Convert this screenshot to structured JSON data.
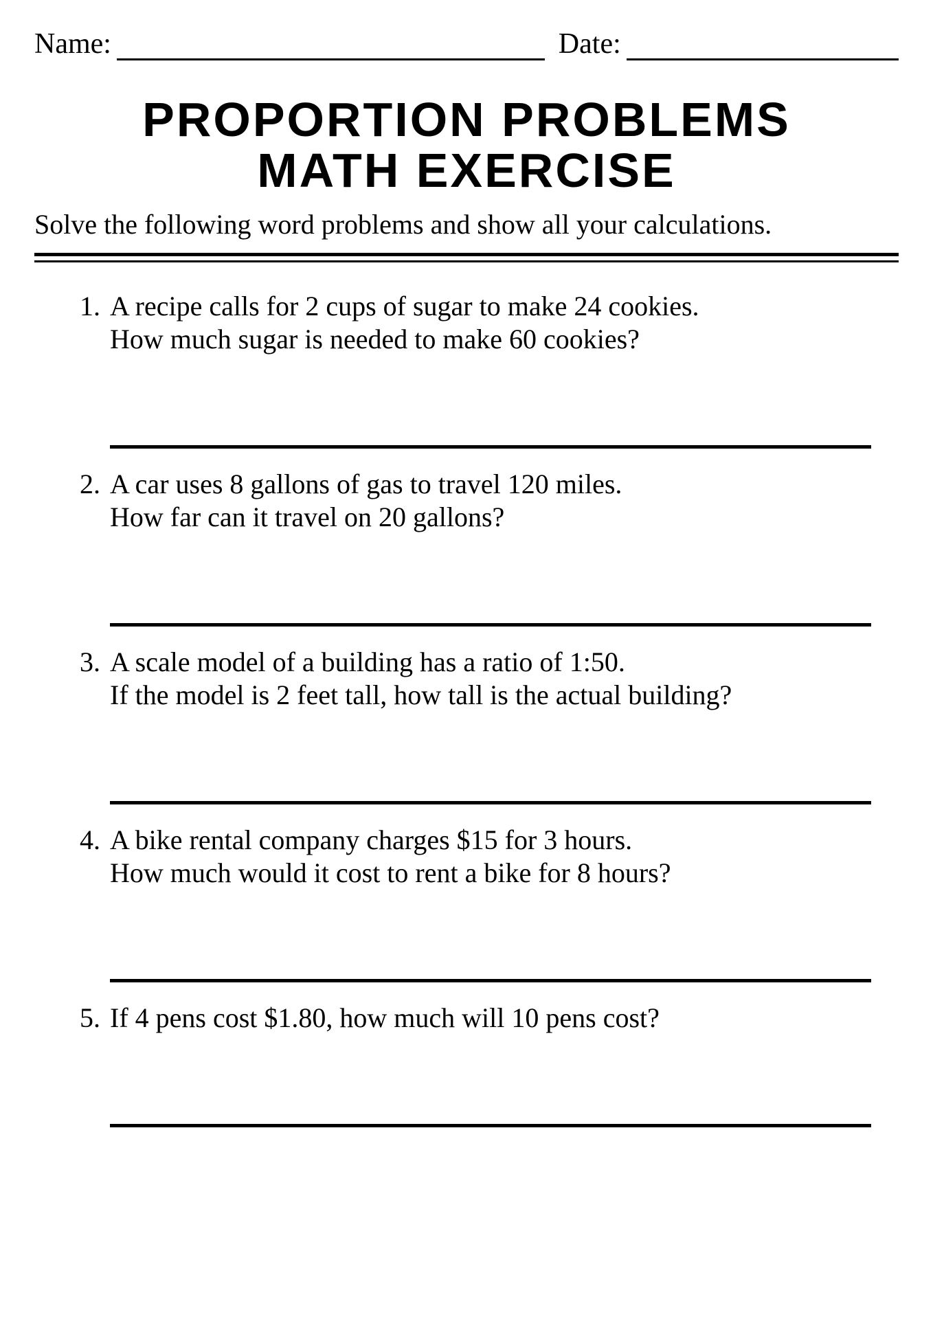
{
  "header": {
    "name_label": "Name:",
    "date_label": "Date:"
  },
  "title_line1": "PROPORTION PROBLEMS",
  "title_line2": "MATH EXERCISE",
  "subtitle": "Solve the following word problems and show all your calculations.",
  "problems": [
    {
      "num": "1.",
      "line1": "A recipe calls for 2 cups of sugar to make 24 cookies.",
      "line2": "How much sugar is needed to make 60 cookies?"
    },
    {
      "num": "2.",
      "line1": "A car uses 8 gallons of gas to travel 120 miles.",
      "line2": "How far can it travel on 20 gallons?"
    },
    {
      "num": "3.",
      "line1": "A scale model of a building has a ratio of 1:50.",
      "line2": "If the model is 2 feet tall, how tall is the actual building?"
    },
    {
      "num": "4.",
      "line1": "A bike rental company charges $15 for 3 hours.",
      "line2": "How much would it cost to rent a bike for 8 hours?"
    },
    {
      "num": "5.",
      "line1": "If 4 pens cost $1.80, how much will 10 pens cost?",
      "line2": ""
    }
  ],
  "colors": {
    "text": "#000000",
    "background": "#ffffff",
    "rule": "#000000"
  },
  "fonts": {
    "body_family": "Georgia serif",
    "body_size_pt": 30,
    "title_family": "Impact/Arial Black",
    "title_size_pt": 52
  }
}
